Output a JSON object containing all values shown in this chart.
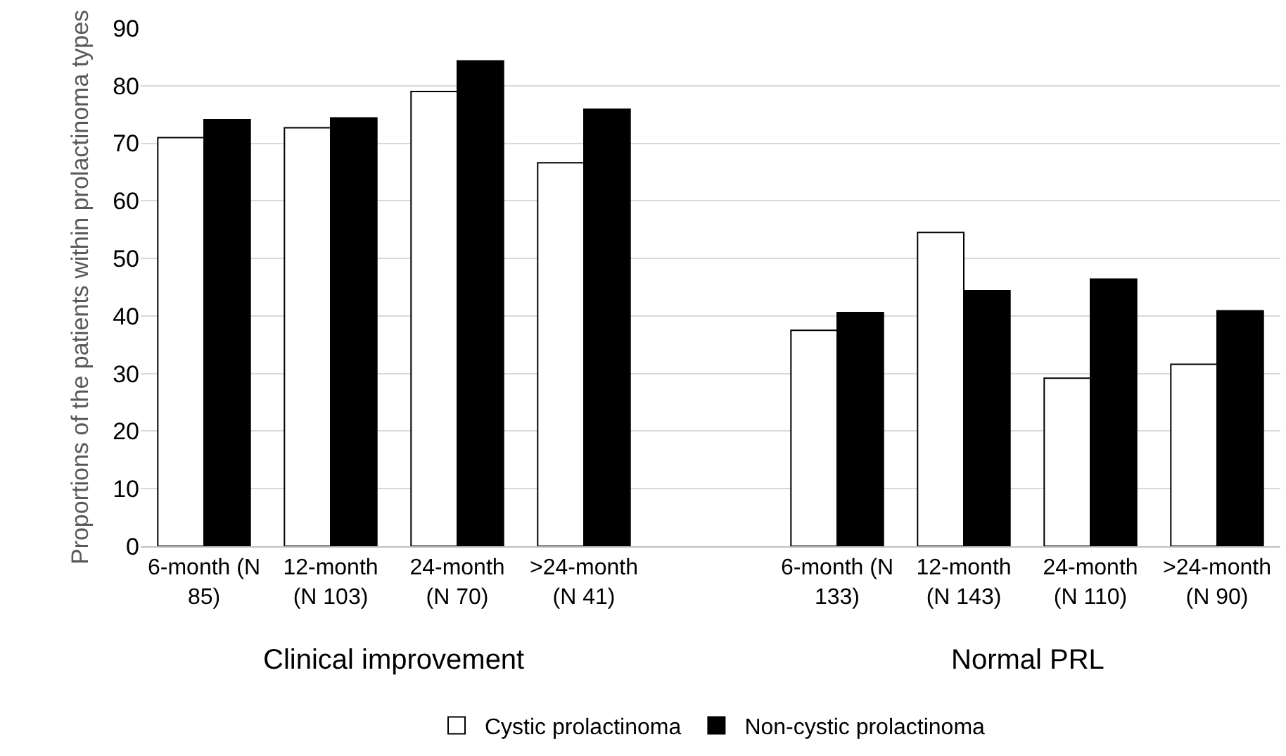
{
  "chart_data": {
    "type": "bar",
    "categories": [
      "6-month (N 85)",
      "12-month (N 103)",
      "24-month (N 70)",
      ">24-month (N 41)",
      null,
      "6-month (N 133)",
      "12-month (N 143)",
      "24-month (N 110)",
      ">24-month (N 90)"
    ],
    "series": [
      {
        "name": "Cystic prolactinoma",
        "color": "#ffffff",
        "values": [
          71,
          72.7,
          79,
          66.6,
          null,
          37.5,
          54.5,
          29.2,
          31.6
        ]
      },
      {
        "name": "Non-cystic prolactinoma",
        "color": "#000000",
        "values": [
          74.1,
          74.4,
          84.3,
          75.9,
          null,
          40.6,
          44.4,
          46.4,
          40.9
        ]
      }
    ],
    "ylabel": "Proportions of the patients within prolactinoma types",
    "ylim": [
      0,
      90
    ],
    "yticks": [
      0,
      10,
      20,
      30,
      40,
      50,
      60,
      70,
      80,
      90
    ],
    "annotations": [
      "Clinical improvement",
      "Normal PRL"
    ],
    "grid": "y",
    "legend": "bottom"
  }
}
